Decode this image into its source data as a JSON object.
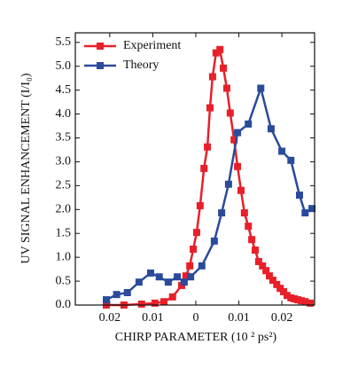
{
  "chart_data": {
    "type": "line",
    "xlabel": "CHIRP PARAMETER (10 ² ps²)",
    "ylabel": "UV SIGNAL ENHANCEMENT (I/I₀)",
    "xlim": [
      -0.028,
      0.0276
    ],
    "ylim": [
      0,
      5.7
    ],
    "xticks": [
      {
        "value": -0.02,
        "label": "0.02"
      },
      {
        "value": -0.01,
        "label": "0.01"
      },
      0,
      0.01,
      0.02
    ],
    "yticks": [
      {
        "value": 0,
        "label": "0.0"
      },
      0.5,
      {
        "value": 1,
        "label": "1.0"
      },
      1.5,
      {
        "value": 2,
        "label": "2.0"
      },
      2.5,
      {
        "value": 3,
        "label": "3.0"
      },
      3.5,
      {
        "value": 4,
        "label": "4.0"
      },
      4.5,
      {
        "value": 5,
        "label": "5.0"
      },
      5.5
    ],
    "legend": "upper left",
    "series": [
      {
        "name": "Experiment",
        "color": "#e8202a",
        "x": [
          -0.0208,
          -0.0167,
          -0.0126,
          -0.0095,
          -0.0074,
          -0.0054,
          -0.0033,
          -0.0023,
          -0.0014,
          -0.0006,
          0.0002,
          0.001,
          0.0019,
          0.0027,
          0.0033,
          0.0039,
          0.0047,
          0.0056,
          0.0064,
          0.0072,
          0.008,
          0.0089,
          0.0097,
          0.0105,
          0.0113,
          0.0122,
          0.013,
          0.0138,
          0.0146,
          0.0155,
          0.0163,
          0.0171,
          0.0179,
          0.0188,
          0.0196,
          0.0204,
          0.0212,
          0.0221,
          0.0229,
          0.0237,
          0.0245,
          0.0254,
          0.0266
        ],
        "values": [
          0,
          0,
          0.02,
          0.04,
          0.07,
          0.17,
          0.41,
          0.61,
          0.82,
          1.17,
          1.52,
          2.08,
          2.86,
          3.31,
          4.13,
          4.78,
          5.28,
          5.35,
          4.96,
          4.54,
          4.02,
          3.46,
          2.9,
          2.4,
          1.93,
          1.65,
          1.37,
          1.15,
          0.91,
          0.82,
          0.72,
          0.61,
          0.52,
          0.43,
          0.35,
          0.28,
          0.2,
          0.15,
          0.13,
          0.11,
          0.09,
          0.07,
          0.04
        ]
      },
      {
        "name": "Theory",
        "color": "#2b4a9b",
        "x": [
          -0.0208,
          -0.0184,
          -0.0159,
          -0.0132,
          -0.0105,
          -0.0085,
          -0.0064,
          -0.0043,
          -0.0027,
          -0.0012,
          0.0014,
          0.0043,
          0.006,
          0.0076,
          0.0097,
          0.0122,
          0.0151,
          0.0175,
          0.02,
          0.0221,
          0.0241,
          0.0254,
          0.027
        ],
        "values": [
          0.11,
          0.22,
          0.26,
          0.48,
          0.67,
          0.59,
          0.48,
          0.59,
          0.48,
          0.59,
          0.82,
          1.34,
          1.93,
          2.53,
          3.61,
          3.79,
          4.54,
          3.69,
          3.22,
          3.03,
          2.3,
          1.93,
          2.02
        ]
      }
    ]
  }
}
